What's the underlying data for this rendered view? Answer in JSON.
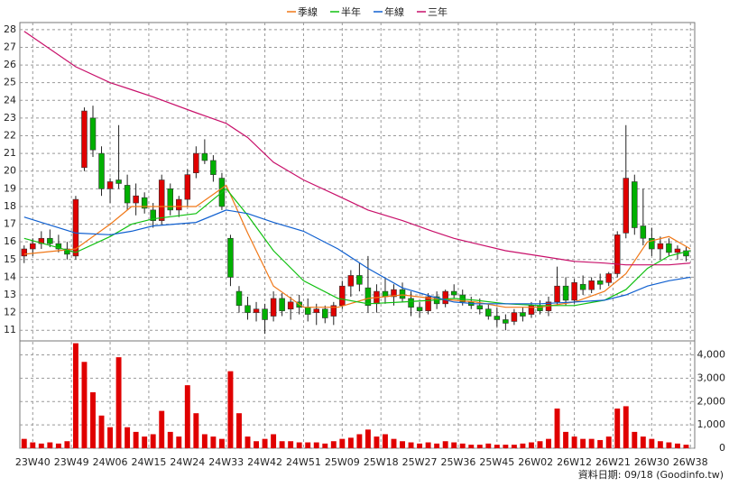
{
  "chart_data": {
    "type": "candlestick",
    "legend": "top",
    "grid": true,
    "xlim": [
      -1,
      156
    ],
    "xticks": [
      {
        "value": 2,
        "label": "23W40"
      },
      {
        "value": 11,
        "label": "23W49"
      },
      {
        "value": 20,
        "label": "24W06"
      },
      {
        "value": 29,
        "label": "24W15"
      },
      {
        "value": 38,
        "label": "24W24"
      },
      {
        "value": 47,
        "label": "24W33"
      },
      {
        "value": 56,
        "label": "24W42"
      },
      {
        "value": 65,
        "label": "24W51"
      },
      {
        "value": 74,
        "label": "25W09"
      },
      {
        "value": 83,
        "label": "25W18"
      },
      {
        "value": 92,
        "label": "25W27"
      },
      {
        "value": 101,
        "label": "25W36"
      },
      {
        "value": 110,
        "label": "25W45"
      },
      {
        "value": 119,
        "label": "26W02"
      },
      {
        "value": 128,
        "label": "26W12"
      },
      {
        "value": 137,
        "label": "26W21"
      },
      {
        "value": 146,
        "label": "26W30"
      },
      {
        "value": 155,
        "label": "26W38"
      }
    ],
    "ylim": [
      10.4,
      28.4
    ],
    "yticks": [
      11,
      12,
      13,
      14,
      15,
      16,
      17,
      18,
      19,
      20,
      21,
      22,
      23,
      24,
      25,
      26,
      27,
      28
    ],
    "up_color": "#e00000",
    "down_color": "#00b000",
    "candles": {
      "x": [
        0,
        2,
        4,
        6,
        8,
        10,
        12,
        14,
        16,
        18,
        20,
        22,
        24,
        26,
        28,
        30,
        32,
        34,
        36,
        38,
        40,
        42,
        44,
        46,
        48,
        50,
        52,
        54,
        56,
        58,
        60,
        62,
        64,
        66,
        68,
        70,
        72,
        74,
        76,
        78,
        80,
        82,
        84,
        86,
        88,
        90,
        92,
        94,
        96,
        98,
        100,
        102,
        104,
        106,
        108,
        110,
        112,
        114,
        116,
        118,
        120,
        122,
        124,
        126,
        128,
        130,
        132,
        134,
        136,
        138,
        140,
        142,
        144,
        146,
        148,
        150,
        152,
        154
      ],
      "open": [
        15.2,
        15.6,
        15.9,
        16.2,
        15.9,
        15.6,
        15.2,
        20.2,
        23.0,
        21.0,
        19.0,
        19.5,
        19.2,
        18.2,
        18.5,
        17.8,
        17.2,
        19.0,
        17.8,
        18.4,
        19.9,
        21.0,
        20.6,
        19.6,
        16.2,
        13.2,
        12.4,
        12.0,
        12.2,
        11.8,
        12.8,
        12.2,
        12.6,
        12.3,
        12.0,
        12.2,
        11.8,
        12.4,
        13.5,
        14.1,
        13.4,
        12.5,
        13.2,
        12.9,
        13.3,
        12.8,
        12.3,
        12.1,
        12.9,
        12.5,
        13.2,
        13.0,
        12.6,
        12.4,
        12.2,
        11.8,
        11.6,
        11.5,
        12.0,
        11.9,
        12.4,
        12.1,
        12.6,
        13.5,
        12.7,
        13.6,
        13.3,
        13.8,
        13.7,
        14.2,
        16.5,
        19.4,
        16.9,
        16.2,
        15.6,
        15.9,
        15.4,
        15.5
      ],
      "high": [
        15.8,
        16.2,
        16.6,
        16.7,
        16.4,
        16.0,
        18.6,
        23.6,
        23.7,
        21.4,
        19.6,
        22.6,
        19.8,
        19.3,
        18.8,
        18.2,
        19.8,
        19.3,
        18.6,
        20.1,
        21.4,
        21.8,
        20.9,
        19.9,
        16.4,
        13.5,
        12.9,
        12.6,
        12.5,
        13.2,
        13.1,
        12.9,
        13.0,
        12.8,
        12.5,
        12.4,
        12.6,
        13.8,
        14.4,
        14.8,
        15.2,
        13.6,
        14.0,
        13.6,
        13.7,
        13.2,
        12.6,
        13.1,
        13.2,
        13.3,
        13.6,
        13.3,
        12.9,
        12.8,
        12.5,
        12.3,
        11.9,
        12.2,
        12.3,
        12.6,
        12.7,
        12.9,
        14.6,
        14.0,
        13.9,
        14.1,
        14.0,
        14.2,
        14.3,
        16.6,
        22.6,
        19.8,
        19.0,
        16.8,
        16.3,
        16.2,
        15.8,
        15.7
      ],
      "low": [
        14.8,
        15.2,
        15.6,
        15.7,
        15.4,
        15.0,
        15.0,
        20.0,
        20.8,
        18.6,
        18.2,
        19.0,
        17.8,
        17.5,
        17.6,
        16.8,
        17.0,
        17.5,
        17.4,
        18.0,
        19.6,
        20.4,
        19.4,
        17.8,
        13.5,
        12.0,
        11.6,
        11.5,
        10.8,
        11.5,
        11.8,
        11.6,
        11.9,
        11.5,
        11.3,
        11.4,
        11.3,
        12.2,
        12.9,
        13.2,
        12.0,
        12.0,
        12.5,
        12.4,
        12.6,
        11.8,
        11.7,
        11.9,
        12.2,
        12.3,
        12.8,
        12.4,
        12.2,
        11.9,
        11.6,
        11.2,
        11.0,
        11.3,
        11.5,
        11.7,
        11.9,
        11.8,
        12.4,
        12.4,
        12.5,
        13.0,
        13.1,
        13.3,
        13.5,
        14.0,
        16.2,
        16.4,
        15.8,
        15.2,
        15.0,
        15.2,
        15.0,
        14.9
      ],
      "close": [
        15.6,
        15.9,
        16.2,
        15.9,
        15.6,
        15.3,
        18.4,
        23.4,
        21.2,
        19.0,
        19.4,
        19.3,
        18.2,
        18.6,
        17.9,
        17.2,
        19.5,
        17.8,
        18.4,
        19.8,
        21.0,
        20.6,
        19.8,
        18.0,
        14.0,
        12.4,
        12.0,
        12.2,
        11.6,
        12.8,
        12.1,
        12.6,
        12.3,
        11.9,
        12.2,
        11.7,
        12.4,
        13.5,
        14.1,
        13.6,
        12.4,
        13.2,
        12.9,
        13.3,
        12.8,
        12.3,
        12.1,
        12.9,
        12.5,
        13.2,
        13.0,
        12.6,
        12.4,
        12.2,
        11.8,
        11.6,
        11.4,
        12.0,
        11.8,
        12.4,
        12.1,
        12.6,
        13.5,
        12.7,
        13.7,
        13.3,
        13.8,
        13.6,
        14.2,
        16.4,
        19.6,
        16.8,
        16.2,
        15.6,
        15.9,
        15.4,
        15.6,
        15.2
      ]
    },
    "series": [
      {
        "name": "季線",
        "color": "#f07818",
        "x": [
          0,
          12,
          20,
          25,
          30,
          40,
          47,
          52,
          58,
          65,
          73,
          80,
          88,
          95,
          100,
          105,
          112,
          120,
          128,
          135,
          140,
          145,
          150,
          155
        ],
        "values": [
          15.3,
          15.6,
          17,
          18,
          18,
          18,
          19.2,
          16.5,
          13.5,
          12.3,
          12.3,
          12.8,
          13,
          12.8,
          12.7,
          12.6,
          12.3,
          12.3,
          12.6,
          13.2,
          14.2,
          16,
          16.3,
          15.6
        ]
      },
      {
        "name": "半年",
        "color": "#10c010",
        "x": [
          0,
          12,
          20,
          25,
          30,
          40,
          47,
          52,
          58,
          65,
          73,
          80,
          88,
          95,
          100,
          105,
          112,
          120,
          128,
          135,
          140,
          145,
          150,
          155
        ],
        "values": [
          16.2,
          15.4,
          16.3,
          17,
          17.3,
          17.6,
          19,
          17.5,
          15.5,
          13.8,
          12.8,
          12.5,
          12.6,
          12.7,
          12.8,
          12.7,
          12.5,
          12.4,
          12.4,
          12.7,
          13.3,
          14.5,
          15.2,
          15.5
        ]
      },
      {
        "name": "年線",
        "color": "#1060d0",
        "x": [
          0,
          12,
          20,
          25,
          30,
          40,
          47,
          52,
          58,
          65,
          73,
          80,
          88,
          95,
          100,
          105,
          112,
          120,
          128,
          135,
          140,
          145,
          150,
          155
        ],
        "values": [
          17.4,
          16.5,
          16.4,
          16.6,
          16.9,
          17.1,
          17.8,
          17.6,
          17.1,
          16.6,
          15.6,
          14.5,
          13.4,
          12.9,
          12.6,
          12.5,
          12.5,
          12.5,
          12.6,
          12.7,
          13,
          13.5,
          13.8,
          14
        ]
      },
      {
        "name": "三年",
        "color": "#c8106a",
        "x": [
          0,
          12,
          20,
          25,
          30,
          40,
          47,
          52,
          58,
          65,
          73,
          80,
          88,
          95,
          100,
          105,
          112,
          120,
          128,
          135,
          140,
          145,
          150,
          155
        ],
        "values": [
          27.9,
          25.9,
          25,
          24.6,
          24.2,
          23.3,
          22.7,
          21.9,
          20.5,
          19.5,
          18.6,
          17.8,
          17.2,
          16.6,
          16.2,
          15.9,
          15.5,
          15.2,
          14.9,
          14.8,
          14.7,
          14.7,
          14.7,
          14.8
        ]
      }
    ],
    "volume": {
      "color": "#e00000",
      "ylim": [
        0,
        4600
      ],
      "yticks": [
        0,
        {
          "value": 1000,
          "label": "1,000"
        },
        {
          "value": 2000,
          "label": "2,000"
        },
        {
          "value": 3000,
          "label": "3,000"
        },
        {
          "value": 4000,
          "label": "4,000"
        }
      ],
      "values": [
        400,
        250,
        200,
        250,
        200,
        300,
        4500,
        3700,
        2400,
        1400,
        900,
        3900,
        900,
        700,
        500,
        600,
        1600,
        700,
        500,
        2700,
        1500,
        600,
        500,
        400,
        3300,
        1500,
        500,
        300,
        400,
        600,
        300,
        300,
        250,
        250,
        250,
        200,
        300,
        400,
        450,
        600,
        800,
        500,
        600,
        400,
        300,
        250,
        200,
        250,
        200,
        300,
        250,
        200,
        150,
        150,
        200,
        150,
        150,
        150,
        200,
        250,
        300,
        400,
        1700,
        700,
        500,
        400,
        400,
        350,
        500,
        1700,
        1800,
        700,
        500,
        400,
        300,
        250,
        200,
        150
      ]
    },
    "footer": "資料日期: 09/18  (Goodinfo.tw)"
  }
}
